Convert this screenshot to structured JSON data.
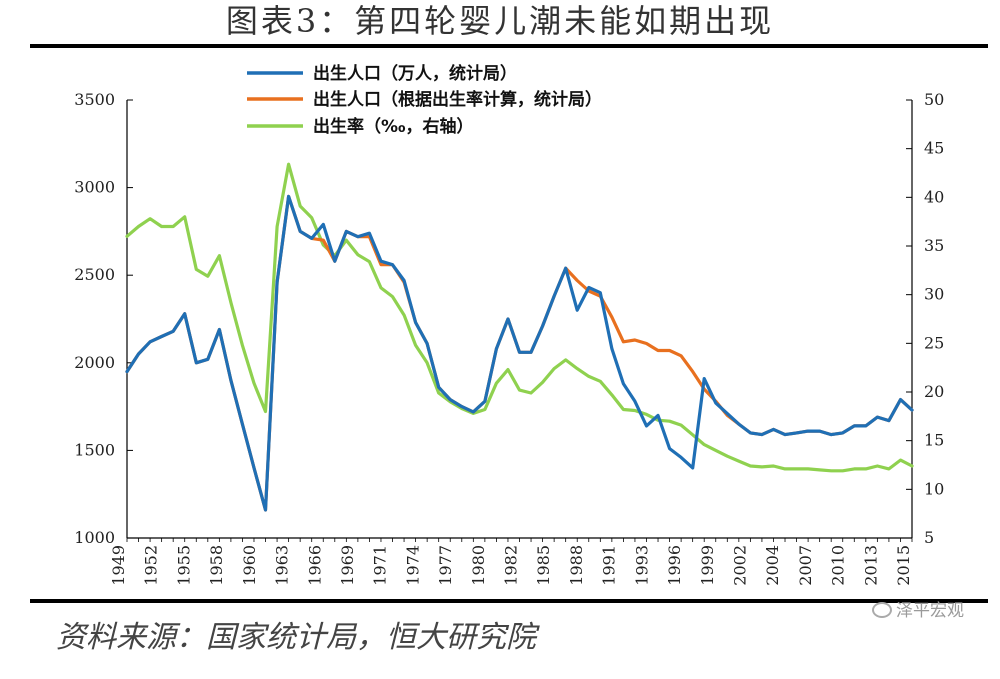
{
  "header": {
    "title": "图表3：第四轮婴儿潮未能如期出现"
  },
  "footer": {
    "source": "资料来源：国家统计局，恒大研究院",
    "watermark": "泽平宏观"
  },
  "chart_data": {
    "type": "line",
    "title": "图表3：第四轮婴儿潮未能如期出现",
    "x_tick_labels": [
      "1949",
      "1952",
      "1955",
      "1958",
      "1960",
      "1963",
      "1966",
      "1969",
      "1971",
      "1974",
      "1977",
      "1980",
      "1982",
      "1985",
      "1988",
      "1991",
      "1993",
      "1996",
      "1999",
      "2002",
      "2004",
      "2007",
      "2010",
      "2013",
      "2015"
    ],
    "ylim_left": [
      1000,
      3500
    ],
    "ylim_right": [
      5,
      50
    ],
    "y_ticks_left": [
      "1000",
      "1500",
      "2000",
      "2500",
      "3000",
      "3500"
    ],
    "y_ticks_right": [
      "5",
      "10",
      "15",
      "20",
      "25",
      "30",
      "35",
      "40",
      "45",
      "50"
    ],
    "legend_position": "top-center",
    "colors": {
      "blue": "#1f6fb5",
      "orange": "#e8701f",
      "green": "#8fd14f"
    },
    "series": [
      {
        "name": "出生人口（万人，统计局）",
        "axis": "left",
        "color": "#1f6fb5",
        "x": [
          1949,
          1950,
          1951,
          1952,
          1953,
          1954,
          1955,
          1956,
          1957,
          1958,
          1959,
          1960,
          1961,
          1962,
          1963,
          1964,
          1965,
          1966,
          1967,
          1968,
          1969,
          1970,
          1971,
          1972,
          1973,
          1974,
          1975,
          1976,
          1977,
          1978,
          1979,
          1980,
          1981,
          1982,
          1983,
          1984,
          1985,
          1986,
          1987,
          1988,
          1989,
          1990,
          1991,
          1992,
          1993,
          1994,
          1995,
          1996,
          1997,
          1998,
          1999,
          2000,
          2001,
          2002,
          2003,
          2004,
          2005,
          2006,
          2007,
          2008,
          2009,
          2010,
          2011,
          2012,
          2013,
          2014,
          2015,
          2016,
          2017
        ],
        "values": [
          1950,
          2050,
          2120,
          2150,
          2180,
          2280,
          2000,
          2020,
          2190,
          1900,
          1650,
          1400,
          1160,
          2460,
          2950,
          2750,
          2710,
          2790,
          2580,
          2750,
          2720,
          2740,
          2580,
          2560,
          2470,
          2230,
          2110,
          1860,
          1790,
          1750,
          1720,
          1780,
          2080,
          2250,
          2060,
          2060,
          2210,
          2380,
          2540,
          2300,
          2430,
          2400,
          2080,
          1880,
          1780,
          1640,
          1700,
          1510,
          1460,
          1400,
          1910,
          1770,
          1710,
          1650,
          1600,
          1590,
          1620,
          1590,
          1600,
          1610,
          1610,
          1590,
          1600,
          1640,
          1640,
          1690,
          1670,
          1790,
          1730
        ]
      },
      {
        "name": "出生人口（根据出生率计算，统计局）",
        "axis": "left",
        "color": "#e8701f",
        "x": [
          1949,
          1950,
          1951,
          1952,
          1953,
          1954,
          1955,
          1956,
          1957,
          1958,
          1959,
          1960,
          1961,
          1962,
          1963,
          1964,
          1965,
          1966,
          1967,
          1968,
          1969,
          1970,
          1971,
          1972,
          1973,
          1974,
          1975,
          1976,
          1977,
          1978,
          1979,
          1980,
          1981,
          1982,
          1983,
          1984,
          1985,
          1986,
          1987,
          1988,
          1989,
          1990,
          1991,
          1992,
          1993,
          1994,
          1995,
          1996,
          1997,
          1998,
          1999,
          2000,
          2001,
          2002,
          2003,
          2004,
          2005,
          2006,
          2007,
          2008,
          2009,
          2010,
          2011,
          2012,
          2013,
          2014,
          2015,
          2016,
          2017
        ],
        "values": [
          1950,
          2050,
          2120,
          2150,
          2180,
          2280,
          2000,
          2020,
          2190,
          1900,
          1650,
          1400,
          1160,
          2460,
          2950,
          2750,
          2710,
          2700,
          2580,
          2750,
          2720,
          2720,
          2560,
          2560,
          2460,
          2230,
          2110,
          1860,
          1790,
          1750,
          1720,
          1780,
          2080,
          2250,
          2060,
          2060,
          2210,
          2380,
          2540,
          2470,
          2410,
          2380,
          2260,
          2120,
          2130,
          2110,
          2070,
          2070,
          2040,
          1950,
          1850,
          1780,
          1700,
          1650,
          1600,
          1590,
          1620,
          1590,
          1600,
          1610,
          1610,
          1590,
          1600,
          1640,
          1640,
          1690,
          1670,
          1790,
          1730
        ]
      },
      {
        "name": "出生率（‰，右轴）",
        "axis": "right",
        "color": "#8fd14f",
        "x": [
          1949,
          1950,
          1951,
          1952,
          1953,
          1954,
          1955,
          1956,
          1957,
          1958,
          1959,
          1960,
          1961,
          1962,
          1963,
          1964,
          1965,
          1966,
          1967,
          1968,
          1969,
          1970,
          1971,
          1972,
          1973,
          1974,
          1975,
          1976,
          1977,
          1978,
          1979,
          1980,
          1981,
          1982,
          1983,
          1984,
          1985,
          1986,
          1987,
          1988,
          1989,
          1990,
          1991,
          1992,
          1993,
          1994,
          1995,
          1996,
          1997,
          1998,
          1999,
          2000,
          2001,
          2002,
          2003,
          2004,
          2005,
          2006,
          2007,
          2008,
          2009,
          2010,
          2011,
          2012,
          2013,
          2014,
          2015,
          2016,
          2017
        ],
        "values": [
          36.0,
          37.0,
          37.8,
          37.0,
          37.0,
          38.0,
          32.6,
          31.9,
          34.0,
          29.2,
          24.8,
          20.9,
          18.0,
          37.0,
          43.4,
          39.1,
          37.9,
          35.1,
          34.0,
          35.6,
          34.1,
          33.4,
          30.7,
          29.8,
          27.9,
          24.8,
          23.0,
          19.9,
          19.0,
          18.3,
          17.8,
          18.2,
          20.9,
          22.3,
          20.2,
          19.9,
          21.0,
          22.4,
          23.3,
          22.4,
          21.6,
          21.1,
          19.7,
          18.2,
          18.1,
          17.7,
          17.1,
          17.0,
          16.6,
          15.6,
          14.6,
          14.0,
          13.4,
          12.9,
          12.4,
          12.3,
          12.4,
          12.1,
          12.1,
          12.1,
          12.0,
          11.9,
          11.9,
          12.1,
          12.1,
          12.4,
          12.1,
          13.0,
          12.4
        ]
      }
    ]
  }
}
